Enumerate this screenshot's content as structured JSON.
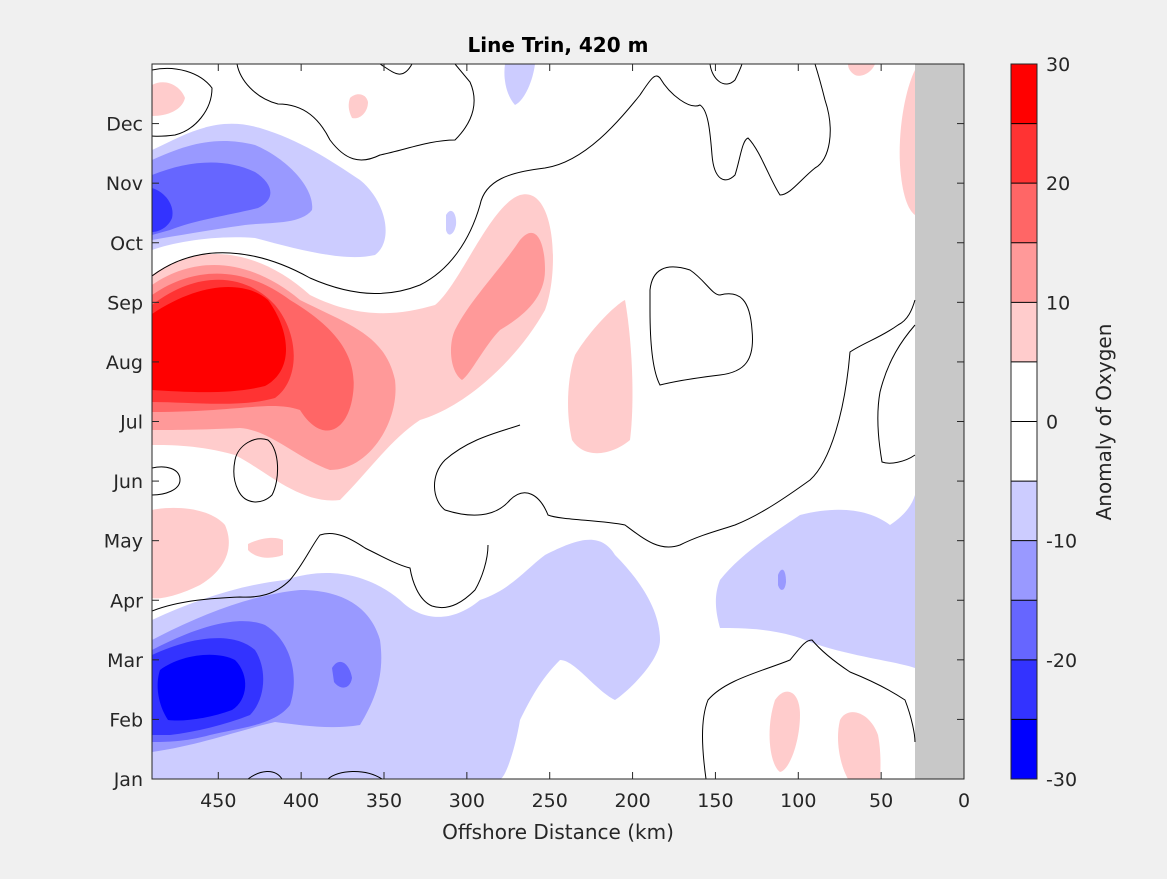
{
  "figure": {
    "background": "#f0f0f0"
  },
  "chart_data": {
    "type": "contourf",
    "title": "Line Trin, 420 m",
    "xlabel": "Offshore Distance (km)",
    "ylabel": "",
    "xlim": [
      490,
      0
    ],
    "x_reversed": true,
    "xticks": [
      450,
      400,
      350,
      300,
      250,
      200,
      150,
      100,
      50,
      0
    ],
    "y_categories": [
      "Jan",
      "Feb",
      "Mar",
      "Apr",
      "May",
      "Jun",
      "Jul",
      "Aug",
      "Sep",
      "Oct",
      "Nov",
      "Dec"
    ],
    "ylim": [
      1,
      13
    ],
    "no_data_region": {
      "x_from": 30,
      "x_to": 0,
      "color": "#c8c8c8"
    },
    "colorbar": {
      "label": "Anomaly of Oxygen",
      "range": [
        -30,
        30
      ],
      "ticks": [
        30,
        20,
        10,
        0,
        -10,
        -20,
        -30
      ],
      "levels": [
        -30,
        -25,
        -20,
        -15,
        -10,
        -5,
        0,
        5,
        10,
        15,
        20,
        25,
        30
      ],
      "colors": [
        "#0000ff",
        "#3333ff",
        "#6666ff",
        "#9999ff",
        "#ccccff",
        "#ffffff",
        "#ffffff",
        "#ffcccc",
        "#ff9999",
        "#ff6666",
        "#ff3333",
        "#ff0000"
      ]
    },
    "features": [
      {
        "name": "positive anomaly",
        "x_center": 450,
        "month_center": 8.0,
        "peak": 30
      },
      {
        "name": "positive anomaly",
        "x_center": 262,
        "month_center": 9.0,
        "peak": 15
      },
      {
        "name": "positive anomaly",
        "x_center": 210,
        "month_center": 8.0,
        "peak": 10
      },
      {
        "name": "negative anomaly",
        "x_center": 460,
        "month_center": 2.6,
        "peak": -30
      },
      {
        "name": "negative anomaly",
        "x_center": 470,
        "month_center": 11.5,
        "peak": -25
      },
      {
        "name": "negative anomaly",
        "x_center": 100,
        "month_center": 4.0,
        "peak": -10
      },
      {
        "name": "negative anomaly",
        "x_center": 230,
        "month_center": 3.3,
        "peak": -10
      }
    ]
  }
}
